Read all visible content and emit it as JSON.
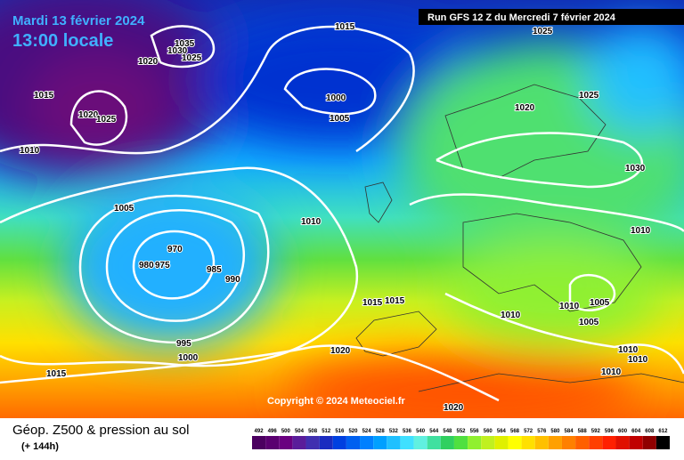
{
  "header": {
    "date": "Mardi 13 février 2024",
    "time": "13:00 locale",
    "run": "Run GFS 12 Z du Mercredi 7 février 2024"
  },
  "copyright": "Copyright © 2024 Meteociel.fr",
  "footer": {
    "title": "Géop. Z500 & pression au sol",
    "lead": "(+ 144h)"
  },
  "legend": {
    "scale": [
      492,
      496,
      500,
      504,
      508,
      512,
      516,
      520,
      524,
      528,
      532,
      536,
      540,
      544,
      548,
      552,
      556,
      560,
      564,
      568,
      572,
      576,
      580,
      584,
      588,
      592,
      596,
      600,
      604,
      608,
      612
    ],
    "colors": [
      "#4b0060",
      "#5a0070",
      "#6a0080",
      "#5a1d9a",
      "#4030b0",
      "#1a2bc0",
      "#0040e0",
      "#0060f0",
      "#0080ff",
      "#00a0ff",
      "#20c0ff",
      "#40e0ff",
      "#60f0e0",
      "#40e0a0",
      "#30d060",
      "#50e040",
      "#90f030",
      "#c0f020",
      "#e0f000",
      "#ffff00",
      "#ffe000",
      "#ffc000",
      "#ffa000",
      "#ff8000",
      "#ff6000",
      "#ff4000",
      "#ff2000",
      "#e01000",
      "#c00000",
      "#900000",
      "#000000"
    ]
  },
  "isobar_labels": [
    "1035",
    "1030",
    "1025",
    "1020",
    "1015",
    "1025",
    "1015",
    "1020",
    "1025",
    "1010",
    "1000",
    "1005",
    "1020",
    "1025",
    "1030",
    "1005",
    "1010",
    "1010",
    "970",
    "980",
    "975",
    "985",
    "990",
    "1015",
    "1015",
    "1010",
    "1010",
    "1005",
    "1005",
    "995",
    "1000",
    "1020",
    "1010",
    "1010",
    "1010",
    "1015",
    "1020"
  ]
}
